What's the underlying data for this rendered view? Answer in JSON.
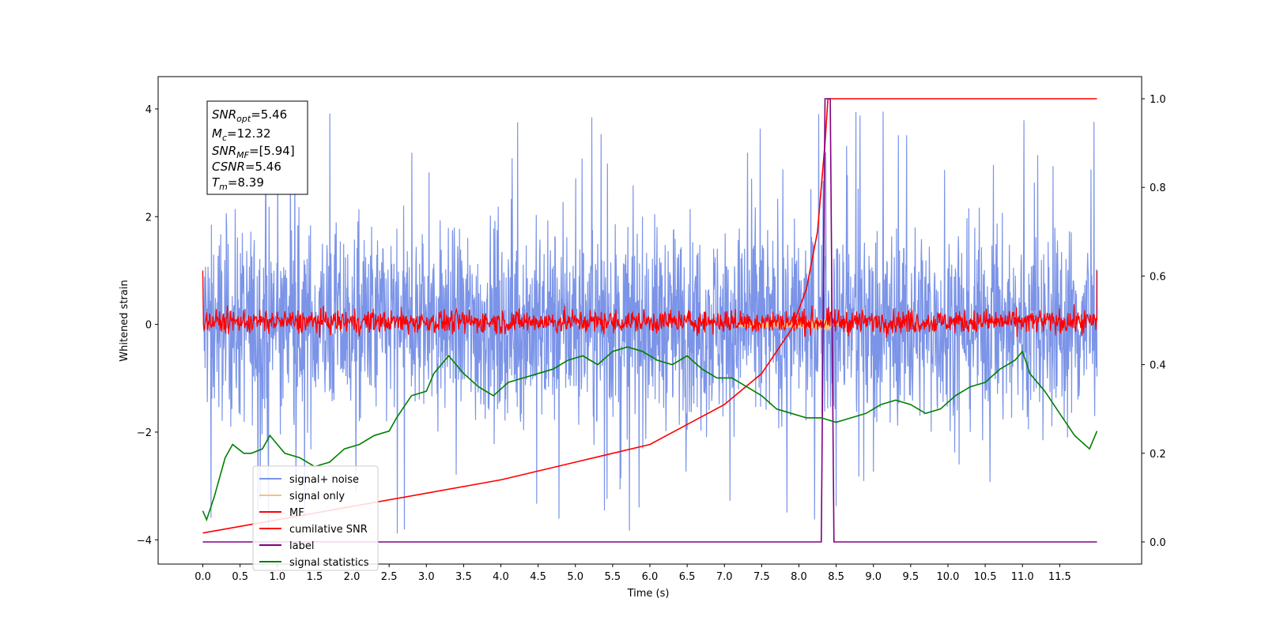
{
  "chart_data": {
    "type": "line",
    "xlabel": "Time (s)",
    "ylabel": "Whitened strain",
    "xlim": [
      -0.6,
      12.6
    ],
    "ylim": [
      -4.45,
      4.6
    ],
    "y2lim": [
      -0.05,
      1.05
    ],
    "x_ticks": [
      "0.0",
      "0.5",
      "1.0",
      "1.5",
      "2.0",
      "2.5",
      "3.0",
      "3.5",
      "4.0",
      "4.5",
      "5.0",
      "5.5",
      "6.0",
      "6.5",
      "7.0",
      "7.5",
      "8.0",
      "8.5",
      "9.0",
      "9.5",
      "10.0",
      "10.5",
      "11.0",
      "11.5"
    ],
    "y_ticks": [
      "4",
      "2",
      "0",
      "−2",
      "−4"
    ],
    "y2_ticks": [
      "1.0",
      "0.8",
      "0.6",
      "0.4",
      "0.2",
      "0.0"
    ],
    "grid": false,
    "legend_position": "lower-left",
    "info_box": {
      "snr_opt_base": "SNR",
      "snr_opt_sub": "opt",
      "snr_opt_val": "=5.46",
      "mc_base": "M",
      "mc_sub": "c",
      "mc_val": "=12.32",
      "snr_mf_base": "SNR",
      "snr_mf_sub": "MF",
      "snr_mf_val": "=[5.94]",
      "csnr_base": "CSNR",
      "csnr_val": "=5.46",
      "tm_base": "T",
      "tm_sub": "m",
      "tm_val": "=8.39"
    },
    "series": [
      {
        "name": "signal+ noise",
        "color": "#7b94e8",
        "axis": "left",
        "duration": 12.0,
        "envelope": [
          -2.7,
          2.7
        ],
        "peaks": [
          -4.0,
          4.1
        ]
      },
      {
        "name": "signal only",
        "color": "#f5c27a",
        "axis": "left",
        "merger_time": 8.39,
        "peak_amplitude": 0.45
      },
      {
        "name": "MF",
        "color": "#ff0000",
        "axis": "left",
        "envelope": [
          -0.25,
          0.4
        ],
        "edge_value": 1.0
      },
      {
        "name": "cumilative SNR",
        "color": "#ff0000",
        "axis": "right",
        "x": [
          0.0,
          1.0,
          2.0,
          3.0,
          4.0,
          5.0,
          6.0,
          7.0,
          7.5,
          7.9,
          8.1,
          8.25,
          8.35,
          8.39,
          12.0
        ],
        "y": [
          0.02,
          0.05,
          0.08,
          0.11,
          0.14,
          0.18,
          0.22,
          0.31,
          0.38,
          0.48,
          0.57,
          0.7,
          0.9,
          1.0,
          1.0
        ]
      },
      {
        "name": "label",
        "color": "#800080",
        "axis": "right",
        "x": [
          0.0,
          8.3,
          8.35,
          8.42,
          8.47,
          12.0
        ],
        "y": [
          0.0,
          0.0,
          1.0,
          1.0,
          0.0,
          0.0
        ]
      },
      {
        "name": "signal statistics",
        "color": "#008000",
        "axis": "right",
        "x": [
          0.0,
          0.05,
          0.15,
          0.3,
          0.4,
          0.55,
          0.65,
          0.8,
          0.9,
          1.0,
          1.1,
          1.3,
          1.5,
          1.7,
          1.9,
          2.1,
          2.3,
          2.5,
          2.6,
          2.8,
          3.0,
          3.1,
          3.3,
          3.5,
          3.7,
          3.9,
          4.1,
          4.3,
          4.5,
          4.7,
          4.9,
          5.1,
          5.3,
          5.5,
          5.7,
          5.9,
          6.1,
          6.3,
          6.5,
          6.7,
          6.9,
          7.1,
          7.3,
          7.5,
          7.7,
          7.9,
          8.1,
          8.3,
          8.5,
          8.7,
          8.9,
          9.1,
          9.3,
          9.5,
          9.7,
          9.9,
          10.1,
          10.3,
          10.5,
          10.7,
          10.9,
          11.0,
          11.1,
          11.3,
          11.5,
          11.7,
          11.9,
          12.0
        ],
        "y": [
          0.07,
          0.05,
          0.1,
          0.19,
          0.22,
          0.2,
          0.2,
          0.21,
          0.24,
          0.22,
          0.2,
          0.19,
          0.17,
          0.18,
          0.21,
          0.22,
          0.24,
          0.25,
          0.28,
          0.33,
          0.34,
          0.38,
          0.42,
          0.38,
          0.35,
          0.33,
          0.36,
          0.37,
          0.38,
          0.39,
          0.41,
          0.42,
          0.4,
          0.43,
          0.44,
          0.43,
          0.41,
          0.4,
          0.42,
          0.39,
          0.37,
          0.37,
          0.35,
          0.33,
          0.3,
          0.29,
          0.28,
          0.28,
          0.27,
          0.28,
          0.29,
          0.31,
          0.32,
          0.31,
          0.29,
          0.3,
          0.33,
          0.35,
          0.36,
          0.39,
          0.41,
          0.43,
          0.38,
          0.34,
          0.29,
          0.24,
          0.21,
          0.25
        ]
      }
    ]
  }
}
